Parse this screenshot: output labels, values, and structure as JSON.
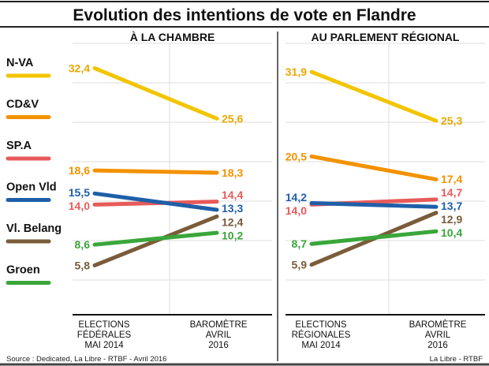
{
  "chart_data": {
    "type": "line",
    "title": "Evolution des intentions de vote en Flandre",
    "source": "Source : Dedicated, La Libre - RTBF - Avril 2016",
    "credit": "La Libre - RTBF",
    "parties": [
      {
        "name": "N-VA",
        "color": "#f2c500",
        "label_color": "#e8a800"
      },
      {
        "name": "CD&V",
        "color": "#f39200",
        "label_color": "#f39200"
      },
      {
        "name": "SP.A",
        "color": "#e85a5a",
        "label_color": "#e85a5a"
      },
      {
        "name": "Open Vld",
        "color": "#1f5fa8",
        "label_color": "#1f5fa8"
      },
      {
        "name": "Vl. Belang",
        "color": "#7a5c3a",
        "label_color": "#7a5c3a"
      },
      {
        "name": "Groen",
        "color": "#3aa63a",
        "label_color": "#3aa63a"
      }
    ],
    "panels": [
      {
        "title": "À LA CHAMBRE",
        "categories": [
          [
            "ELECTIONS",
            "FÉDÉRALES",
            "MAI 2014"
          ],
          [
            "BAROMÈTRE",
            "AVRIL",
            "2016"
          ]
        ],
        "series": [
          {
            "name": "N-VA",
            "values": [
              32.4,
              25.6
            ],
            "labels": [
              "32,4",
              "25,6"
            ]
          },
          {
            "name": "CD&V",
            "values": [
              18.6,
              18.3
            ],
            "labels": [
              "18,6",
              "18,3"
            ]
          },
          {
            "name": "SP.A",
            "values": [
              14.0,
              14.4
            ],
            "labels": [
              "14,0",
              "14,4"
            ]
          },
          {
            "name": "Open Vld",
            "values": [
              15.5,
              13.3
            ],
            "labels": [
              "15,5",
              "13,3"
            ]
          },
          {
            "name": "Vl. Belang",
            "values": [
              5.8,
              12.4
            ],
            "labels": [
              "5,8",
              "12,4"
            ]
          },
          {
            "name": "Groen",
            "values": [
              8.6,
              10.2
            ],
            "labels": [
              "8,6",
              "10,2"
            ]
          }
        ]
      },
      {
        "title": "AU PARLEMENT RÉGIONAL",
        "categories": [
          [
            "ELECTIONS",
            "RÉGIONALES",
            "MAI 2014"
          ],
          [
            "BAROMÈTRE",
            "AVRIL",
            "2016"
          ]
        ],
        "series": [
          {
            "name": "N-VA",
            "values": [
              31.9,
              25.3
            ],
            "labels": [
              "31,9",
              "25,3"
            ]
          },
          {
            "name": "CD&V",
            "values": [
              20.5,
              17.4
            ],
            "labels": [
              "20,5",
              "17,4"
            ]
          },
          {
            "name": "SP.A",
            "values": [
              14.0,
              14.7
            ],
            "labels": [
              "14,0",
              "14,7"
            ]
          },
          {
            "name": "Open Vld",
            "values": [
              14.2,
              13.7
            ],
            "labels": [
              "14,2",
              "13,7"
            ]
          },
          {
            "name": "Vl. Belang",
            "values": [
              5.9,
              12.9
            ],
            "labels": [
              "5,9",
              "12,9"
            ]
          },
          {
            "name": "Groen",
            "values": [
              8.7,
              10.4
            ],
            "labels": [
              "8,7",
              "10,4"
            ]
          }
        ]
      }
    ]
  }
}
